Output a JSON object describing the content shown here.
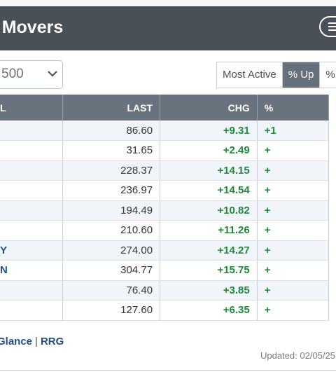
{
  "header": {
    "title": "arket Movers"
  },
  "index_select": {
    "value": "500"
  },
  "filters": [
    {
      "label": "Most Active",
      "active": false
    },
    {
      "label": "% Up",
      "active": true
    },
    {
      "label": "%",
      "active": false
    }
  ],
  "table": {
    "columns": [
      "L",
      "LAST",
      "CHG",
      "%"
    ],
    "rows": [
      {
        "symbol": "",
        "last": "86.60",
        "chg": "+9.31",
        "pct": "+1"
      },
      {
        "symbol": "",
        "last": "31.65",
        "chg": "+2.49",
        "pct": "+"
      },
      {
        "symbol": "",
        "last": "228.37",
        "chg": "+14.15",
        "pct": "+"
      },
      {
        "symbol": "",
        "last": "236.97",
        "chg": "+14.54",
        "pct": "+"
      },
      {
        "symbol": "",
        "last": "194.49",
        "chg": "+10.82",
        "pct": "+"
      },
      {
        "symbol": "",
        "last": "210.60",
        "chg": "+11.26",
        "pct": "+"
      },
      {
        "symbol": "Y",
        "last": "274.00",
        "chg": "+14.27",
        "pct": "+"
      },
      {
        "symbol": "N",
        "last": "304.77",
        "chg": "+15.75",
        "pct": "+"
      },
      {
        "symbol": "",
        "last": "76.40",
        "chg": "+3.85",
        "pct": "+"
      },
      {
        "symbol": "",
        "last": "127.60",
        "chg": "+6.35",
        "pct": "+"
      }
    ]
  },
  "footer": {
    "link_glance": "Glance",
    "separator": "|",
    "link_rrg": "RRG",
    "updated": "Updated: 02/05/25"
  },
  "colors": {
    "header_bg": "#4a5058",
    "positive": "#1e8a3a",
    "link": "#1f4f86"
  }
}
